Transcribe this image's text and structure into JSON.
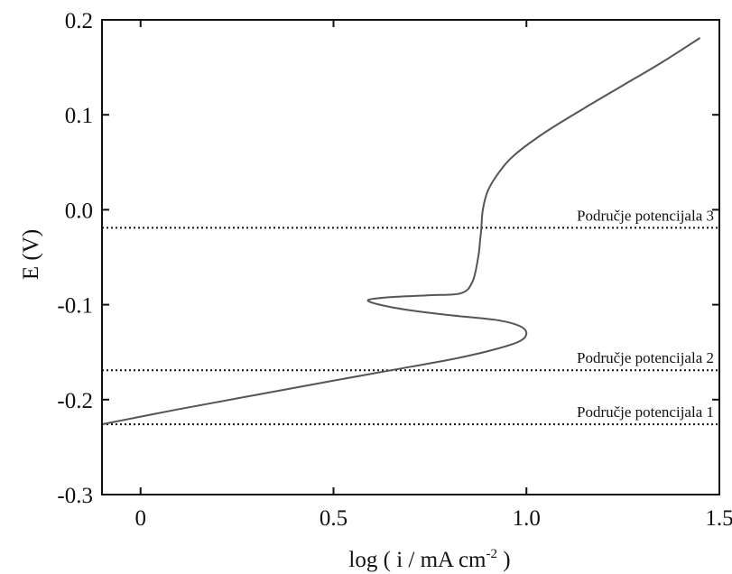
{
  "chart_data": {
    "type": "line",
    "title": "",
    "xlabel": "log ( i / mA cm",
    "xlabel_sup": "-2",
    "xlabel_end": " )",
    "ylabel": "E (V)",
    "xlim": [
      -0.1,
      1.5
    ],
    "ylim": [
      -0.3,
      0.2
    ],
    "x_ticks": [
      0,
      0.5,
      1.0,
      1.5
    ],
    "x_tick_labels": [
      "0",
      "0.5",
      "1.0",
      "1.5"
    ],
    "y_ticks": [
      0.2,
      0.1,
      0.0,
      -0.1,
      -0.2,
      -0.3
    ],
    "y_tick_labels": [
      "0.2",
      "0.1",
      "0.0",
      "-0.1",
      "-0.2",
      "-0.3"
    ],
    "grid": false,
    "line_color": "#555555",
    "series": [
      {
        "x": [
          -0.1,
          0.1,
          0.3,
          0.5,
          0.65,
          0.8,
          0.9,
          0.98,
          1.0,
          0.98,
          0.92,
          0.8,
          0.7,
          0.62,
          0.59,
          0.65,
          0.75,
          0.83,
          0.86,
          0.875,
          0.88,
          0.883,
          0.887,
          0.9,
          0.93,
          0.97,
          1.05,
          1.15,
          1.25,
          1.35,
          1.45
        ],
        "y": [
          -0.226,
          -0.21,
          -0.195,
          -0.18,
          -0.169,
          -0.158,
          -0.149,
          -0.139,
          -0.13,
          -0.122,
          -0.116,
          -0.111,
          -0.106,
          -0.1,
          -0.095,
          -0.092,
          -0.09,
          -0.088,
          -0.076,
          -0.05,
          -0.032,
          -0.02,
          0.0,
          0.02,
          0.04,
          0.058,
          0.082,
          0.107,
          0.131,
          0.155,
          0.181
        ]
      }
    ],
    "reference_lines": [
      {
        "y": -0.019,
        "label": "Područje potencijala 3"
      },
      {
        "y": -0.169,
        "label": "Područje potencijala 2"
      },
      {
        "y": -0.226,
        "label": "Područje potencijala 1"
      }
    ]
  }
}
